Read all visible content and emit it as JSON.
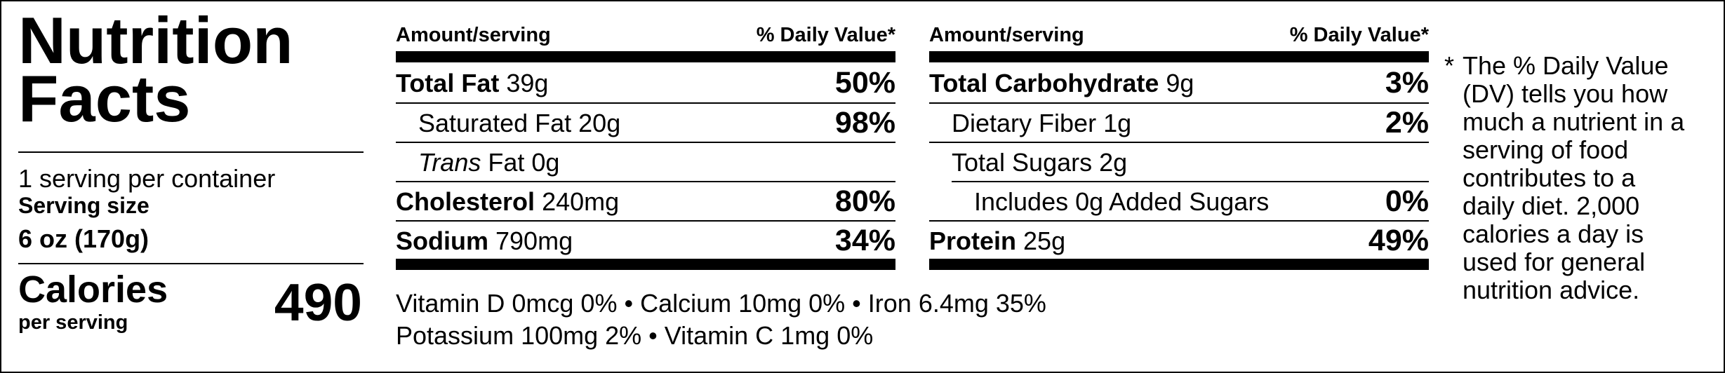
{
  "header": {
    "title": "Nutrition Facts",
    "servings_per_container": "1 serving per container",
    "serving_size_label": "Serving size",
    "serving_size_value": "6 oz (170g)"
  },
  "calories": {
    "label": "Calories",
    "sub": "per serving",
    "value": "490"
  },
  "columns": [
    {
      "amount_header": "Amount/serving",
      "dv_header": "% Daily Value*",
      "rows": [
        {
          "name": "Total Fat",
          "amount": "39g",
          "pct": "50%",
          "bold": true,
          "indent": 0
        },
        {
          "name": "Saturated Fat",
          "amount": "20g",
          "pct": "98%",
          "bold": false,
          "indent": 1
        },
        {
          "name": "Trans",
          "name_rest": "Fat",
          "amount": "0g",
          "pct": "",
          "bold": false,
          "indent": 1,
          "italic_first": true
        },
        {
          "name": "Cholesterol",
          "amount": "240mg",
          "pct": "80%",
          "bold": true,
          "indent": 0
        },
        {
          "name": "Sodium",
          "amount": "790mg",
          "pct": "34%",
          "bold": true,
          "indent": 0
        }
      ]
    },
    {
      "amount_header": "Amount/serving",
      "dv_header": "% Daily Value*",
      "rows": [
        {
          "name": "Total Carbohydrate",
          "amount": "9g",
          "pct": "3%",
          "bold": true,
          "indent": 0
        },
        {
          "name": "Dietary Fiber",
          "amount": "1g",
          "pct": "2%",
          "bold": false,
          "indent": 1
        },
        {
          "name": "Total Sugars",
          "amount": "2g",
          "pct": "",
          "bold": false,
          "indent": 1
        },
        {
          "name": "Includes 0g Added Sugars",
          "amount": "",
          "pct": "0%",
          "bold": false,
          "indent": 2
        },
        {
          "name": "Protein",
          "amount": "25g",
          "pct": "49%",
          "bold": true,
          "indent": 0
        }
      ]
    }
  ],
  "vitamins": {
    "line1": "Vitamin D 0mcg 0% • Calcium 10mg 0% • Iron 6.4mg 35%",
    "line2": "Potassium 100mg 2% • Vitamin C 1mg 0%"
  },
  "footnote": {
    "star": "*",
    "text": "The % Daily Value (DV) tells you how much a nutrient in a serving of food contributes to a daily diet. 2,000 calories a day is used for general nutrition advice."
  }
}
